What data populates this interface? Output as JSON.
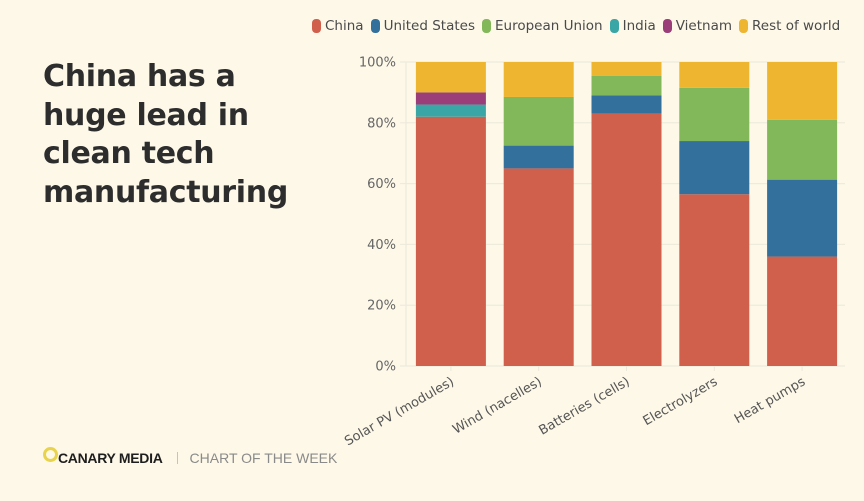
{
  "headline": [
    "China has a",
    "huge lead in",
    "clean tech",
    "manufacturing"
  ],
  "footer": {
    "brand": "CANARY MEDIA",
    "tag": "CHART OF THE WEEK"
  },
  "chart_data": {
    "type": "bar",
    "stacked": true,
    "title": "China has a huge lead in clean tech manufacturing",
    "xlabel": "",
    "ylabel": "",
    "ylim": [
      0,
      100
    ],
    "y_ticks": [
      "0%",
      "20%",
      "40%",
      "60%",
      "80%",
      "100%"
    ],
    "y_tick_values": [
      0,
      20,
      40,
      60,
      80,
      100
    ],
    "grid": true,
    "legend_position": "top",
    "categories": [
      "Solar PV (modules)",
      "Wind (nacelles)",
      "Batteries (cells)",
      "Electrolyzers",
      "Heat pumps"
    ],
    "series": [
      {
        "name": "China",
        "color": "#d0604c",
        "values": [
          82,
          65,
          83,
          56.5,
          36
        ]
      },
      {
        "name": "United States",
        "color": "#33709c",
        "values": [
          0,
          7.5,
          6,
          17.5,
          25.3
        ]
      },
      {
        "name": "European Union",
        "color": "#82b75a",
        "values": [
          0,
          16,
          6.5,
          17.5,
          19.7
        ]
      },
      {
        "name": "India",
        "color": "#3aa7a6",
        "values": [
          4,
          0,
          0,
          0,
          0
        ]
      },
      {
        "name": "Vietnam",
        "color": "#9b3d78",
        "values": [
          4,
          0,
          0,
          0,
          0
        ]
      },
      {
        "name": "Rest of world",
        "color": "#eeb530",
        "values": [
          10,
          11.5,
          4.5,
          8.5,
          19
        ]
      }
    ]
  }
}
